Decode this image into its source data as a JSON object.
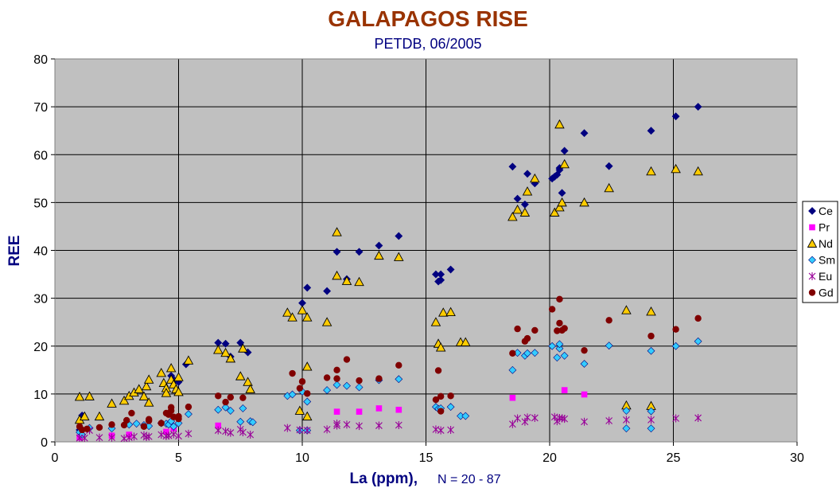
{
  "chart_data": {
    "type": "scatter",
    "title": "GALAPAGOS RISE",
    "subtitle": "PETDB, 06/2005",
    "xlabel": "La (ppm),",
    "xlabel_note": "N = 20 - 87",
    "ylabel": "REE",
    "xlim": [
      0,
      30
    ],
    "ylim": [
      0,
      80
    ],
    "x_ticks": [
      0,
      5,
      10,
      15,
      20,
      25,
      30
    ],
    "y_ticks": [
      0,
      10,
      20,
      30,
      40,
      50,
      60,
      70,
      80
    ],
    "grid": "on",
    "plot_background": "#c0c0c0",
    "legend_position": "right",
    "series": [
      {
        "name": "Ce",
        "marker": "diamond",
        "color": "#000080",
        "points": [
          [
            1.0,
            2.5
          ],
          [
            1.1,
            5.5
          ],
          [
            4.7,
            13.8
          ],
          [
            4.8,
            13.0
          ],
          [
            5.0,
            12.5
          ],
          [
            5.3,
            16.2
          ],
          [
            6.6,
            20.7
          ],
          [
            6.9,
            20.5
          ],
          [
            7.1,
            17.8
          ],
          [
            7.5,
            20.7
          ],
          [
            7.8,
            18.7
          ],
          [
            10.0,
            29.0
          ],
          [
            10.2,
            32.2
          ],
          [
            11.0,
            31.5
          ],
          [
            11.4,
            39.7
          ],
          [
            11.8,
            34.0
          ],
          [
            12.3,
            39.7
          ],
          [
            13.1,
            41.0
          ],
          [
            13.9,
            43.0
          ],
          [
            15.4,
            35.0
          ],
          [
            15.5,
            33.5
          ],
          [
            15.6,
            35.0
          ],
          [
            15.6,
            33.8
          ],
          [
            16.0,
            36.0
          ],
          [
            18.5,
            57.5
          ],
          [
            18.7,
            50.8
          ],
          [
            19.0,
            49.6
          ],
          [
            19.1,
            56.0
          ],
          [
            19.4,
            54.0
          ],
          [
            20.1,
            55.0
          ],
          [
            20.2,
            55.4
          ],
          [
            20.3,
            55.8
          ],
          [
            20.4,
            56.8
          ],
          [
            20.4,
            57.2
          ],
          [
            20.5,
            52.0
          ],
          [
            20.6,
            60.8
          ],
          [
            21.4,
            64.5
          ],
          [
            22.4,
            57.6
          ],
          [
            24.1,
            65.0
          ],
          [
            25.1,
            68.0
          ],
          [
            26.0,
            70.0
          ]
        ]
      },
      {
        "name": "Pr",
        "marker": "square",
        "color": "#ff00ff",
        "points": [
          [
            1.0,
            0.9
          ],
          [
            2.3,
            1.3
          ],
          [
            3.0,
            1.5
          ],
          [
            4.5,
            2.1
          ],
          [
            4.8,
            2.8
          ],
          [
            6.6,
            3.4
          ],
          [
            11.4,
            6.3
          ],
          [
            12.3,
            6.3
          ],
          [
            13.1,
            7.0
          ],
          [
            13.9,
            6.7
          ],
          [
            18.5,
            9.2
          ],
          [
            20.6,
            10.8
          ],
          [
            21.4,
            9.9
          ]
        ]
      },
      {
        "name": "Nd",
        "marker": "triangle",
        "color": "#ffcc00",
        "points": [
          [
            1.0,
            9.4
          ],
          [
            1.0,
            4.6
          ],
          [
            1.2,
            5.3
          ],
          [
            1.4,
            9.5
          ],
          [
            1.8,
            5.3
          ],
          [
            2.3,
            8.0
          ],
          [
            2.8,
            8.6
          ],
          [
            3.0,
            9.6
          ],
          [
            3.2,
            10.3
          ],
          [
            3.4,
            11.0
          ],
          [
            3.6,
            9.5
          ],
          [
            3.7,
            11.6
          ],
          [
            3.8,
            13.0
          ],
          [
            3.8,
            8.2
          ],
          [
            4.3,
            14.4
          ],
          [
            4.4,
            12.3
          ],
          [
            4.5,
            11.2
          ],
          [
            4.5,
            10.2
          ],
          [
            4.7,
            15.4
          ],
          [
            4.7,
            13.0
          ],
          [
            4.8,
            12.0
          ],
          [
            4.9,
            11.0
          ],
          [
            5.0,
            10.4
          ],
          [
            5.0,
            13.5
          ],
          [
            5.4,
            17.0
          ],
          [
            6.6,
            19.2
          ],
          [
            6.9,
            18.6
          ],
          [
            7.1,
            17.4
          ],
          [
            7.5,
            13.7
          ],
          [
            7.6,
            19.5
          ],
          [
            7.8,
            12.5
          ],
          [
            7.9,
            11.0
          ],
          [
            9.4,
            27.0
          ],
          [
            9.6,
            26.0
          ],
          [
            9.9,
            6.5
          ],
          [
            10.0,
            27.5
          ],
          [
            10.2,
            26.0
          ],
          [
            10.2,
            15.7
          ],
          [
            10.2,
            5.3
          ],
          [
            11.0,
            25.0
          ],
          [
            11.4,
            43.8
          ],
          [
            11.4,
            34.7
          ],
          [
            11.8,
            33.6
          ],
          [
            12.3,
            33.4
          ],
          [
            13.1,
            38.9
          ],
          [
            13.9,
            38.6
          ],
          [
            15.4,
            25.0
          ],
          [
            15.5,
            20.5
          ],
          [
            15.6,
            19.7
          ],
          [
            15.7,
            27.0
          ],
          [
            16.0,
            27.1
          ],
          [
            16.4,
            20.8
          ],
          [
            16.6,
            20.8
          ],
          [
            18.5,
            47.0
          ],
          [
            18.7,
            48.5
          ],
          [
            19.0,
            47.9
          ],
          [
            19.1,
            52.3
          ],
          [
            19.4,
            55.0
          ],
          [
            20.2,
            47.9
          ],
          [
            20.4,
            49.0
          ],
          [
            20.4,
            66.3
          ],
          [
            20.5,
            50.0
          ],
          [
            20.6,
            58.0
          ],
          [
            21.4,
            50.0
          ],
          [
            22.4,
            53.0
          ],
          [
            23.1,
            27.5
          ],
          [
            23.1,
            7.6
          ],
          [
            24.1,
            56.5
          ],
          [
            24.1,
            27.2
          ],
          [
            24.1,
            7.5
          ],
          [
            25.1,
            57.0
          ],
          [
            26.0,
            56.5
          ]
        ]
      },
      {
        "name": "Sm",
        "marker": "diamond",
        "color": "#33ccff",
        "points": [
          [
            1.0,
            2.0
          ],
          [
            1.1,
            1.5
          ],
          [
            1.4,
            2.9
          ],
          [
            2.3,
            2.8
          ],
          [
            3.0,
            3.6
          ],
          [
            3.3,
            3.8
          ],
          [
            3.6,
            3.5
          ],
          [
            3.8,
            3.3
          ],
          [
            4.3,
            3.9
          ],
          [
            4.5,
            3.8
          ],
          [
            4.6,
            3.6
          ],
          [
            4.7,
            4.3
          ],
          [
            4.8,
            3.2
          ],
          [
            5.0,
            3.9
          ],
          [
            5.4,
            5.8
          ],
          [
            6.6,
            6.7
          ],
          [
            6.9,
            7.2
          ],
          [
            7.1,
            6.5
          ],
          [
            7.5,
            4.2
          ],
          [
            7.6,
            7.0
          ],
          [
            7.9,
            4.3
          ],
          [
            8.0,
            4.1
          ],
          [
            9.4,
            9.6
          ],
          [
            9.6,
            9.9
          ],
          [
            9.9,
            2.4
          ],
          [
            10.0,
            10.5
          ],
          [
            10.2,
            8.4
          ],
          [
            10.2,
            2.4
          ],
          [
            11.0,
            10.8
          ],
          [
            11.4,
            11.9
          ],
          [
            11.8,
            11.7
          ],
          [
            12.3,
            11.4
          ],
          [
            13.1,
            12.9
          ],
          [
            13.9,
            13.1
          ],
          [
            15.4,
            7.3
          ],
          [
            15.5,
            6.9
          ],
          [
            15.6,
            7.0
          ],
          [
            16.0,
            7.3
          ],
          [
            16.4,
            5.4
          ],
          [
            16.6,
            5.4
          ],
          [
            18.5,
            15.0
          ],
          [
            18.7,
            18.6
          ],
          [
            19.0,
            18.0
          ],
          [
            19.1,
            18.5
          ],
          [
            19.4,
            18.6
          ],
          [
            20.1,
            20.0
          ],
          [
            20.3,
            17.6
          ],
          [
            20.4,
            19.5
          ],
          [
            20.4,
            20.4
          ],
          [
            20.6,
            18.0
          ],
          [
            21.4,
            16.3
          ],
          [
            22.4,
            20.1
          ],
          [
            23.1,
            6.5
          ],
          [
            23.1,
            2.8
          ],
          [
            24.1,
            19.0
          ],
          [
            24.1,
            6.4
          ],
          [
            24.1,
            2.8
          ],
          [
            25.1,
            20.0
          ],
          [
            26.0,
            21.0
          ]
        ]
      },
      {
        "name": "Eu",
        "marker": "asterisk",
        "color": "#990099",
        "points": [
          [
            1.0,
            0.8
          ],
          [
            1.2,
            0.8
          ],
          [
            1.4,
            2.4
          ],
          [
            1.8,
            0.9
          ],
          [
            2.3,
            0.9
          ],
          [
            2.8,
            0.7
          ],
          [
            3.0,
            0.9
          ],
          [
            3.2,
            1.1
          ],
          [
            3.6,
            1.4
          ],
          [
            3.7,
            1.0
          ],
          [
            3.8,
            1.1
          ],
          [
            4.3,
            1.5
          ],
          [
            4.5,
            1.2
          ],
          [
            4.6,
            1.3
          ],
          [
            4.8,
            1.6
          ],
          [
            5.0,
            1.2
          ],
          [
            5.4,
            1.7
          ],
          [
            6.6,
            2.4
          ],
          [
            6.9,
            2.2
          ],
          [
            7.1,
            1.9
          ],
          [
            7.5,
            2.6
          ],
          [
            7.6,
            2.0
          ],
          [
            7.9,
            1.5
          ],
          [
            9.4,
            2.9
          ],
          [
            9.9,
            2.5
          ],
          [
            10.2,
            2.4
          ],
          [
            11.0,
            2.6
          ],
          [
            11.4,
            3.4
          ],
          [
            11.4,
            3.8
          ],
          [
            11.8,
            3.6
          ],
          [
            12.3,
            3.3
          ],
          [
            13.1,
            3.4
          ],
          [
            13.9,
            3.5
          ],
          [
            15.4,
            2.6
          ],
          [
            15.6,
            2.4
          ],
          [
            16.0,
            2.5
          ],
          [
            18.5,
            3.7
          ],
          [
            18.7,
            4.9
          ],
          [
            19.0,
            4.2
          ],
          [
            19.1,
            5.1
          ],
          [
            19.4,
            5.0
          ],
          [
            20.2,
            5.2
          ],
          [
            20.3,
            4.3
          ],
          [
            20.4,
            5.0
          ],
          [
            20.5,
            4.9
          ],
          [
            20.6,
            4.8
          ],
          [
            21.4,
            4.2
          ],
          [
            22.4,
            4.4
          ],
          [
            23.1,
            4.6
          ],
          [
            24.1,
            4.6
          ],
          [
            25.1,
            4.9
          ],
          [
            26.0,
            5.0
          ]
        ]
      },
      {
        "name": "Gd",
        "marker": "circle",
        "color": "#800000",
        "points": [
          [
            1.0,
            3.2
          ],
          [
            1.1,
            2.5
          ],
          [
            1.3,
            2.7
          ],
          [
            1.8,
            3.0
          ],
          [
            2.3,
            3.6
          ],
          [
            2.8,
            3.5
          ],
          [
            2.9,
            4.5
          ],
          [
            3.1,
            6.0
          ],
          [
            3.6,
            3.2
          ],
          [
            3.8,
            4.4
          ],
          [
            3.8,
            4.7
          ],
          [
            4.3,
            3.9
          ],
          [
            4.5,
            6.0
          ],
          [
            4.6,
            5.7
          ],
          [
            4.7,
            7.2
          ],
          [
            4.7,
            6.5
          ],
          [
            4.8,
            5.2
          ],
          [
            5.0,
            4.8
          ],
          [
            5.0,
            5.3
          ],
          [
            5.4,
            7.3
          ],
          [
            6.6,
            9.6
          ],
          [
            6.9,
            8.3
          ],
          [
            7.1,
            9.3
          ],
          [
            7.6,
            9.2
          ],
          [
            9.6,
            14.3
          ],
          [
            9.9,
            11.2
          ],
          [
            10.0,
            12.6
          ],
          [
            10.2,
            10.1
          ],
          [
            11.0,
            13.4
          ],
          [
            11.4,
            15.0
          ],
          [
            11.4,
            13.2
          ],
          [
            11.8,
            17.2
          ],
          [
            12.3,
            12.8
          ],
          [
            13.1,
            13.2
          ],
          [
            13.9,
            16.0
          ],
          [
            15.4,
            8.8
          ],
          [
            15.5,
            14.9
          ],
          [
            15.6,
            9.5
          ],
          [
            15.6,
            6.4
          ],
          [
            16.0,
            9.6
          ],
          [
            18.5,
            18.5
          ],
          [
            18.7,
            23.6
          ],
          [
            19.0,
            21.0
          ],
          [
            19.1,
            21.6
          ],
          [
            19.4,
            23.3
          ],
          [
            20.1,
            27.7
          ],
          [
            20.3,
            23.2
          ],
          [
            20.4,
            29.8
          ],
          [
            20.4,
            24.8
          ],
          [
            20.5,
            23.3
          ],
          [
            20.6,
            23.7
          ],
          [
            21.4,
            19.1
          ],
          [
            22.4,
            25.4
          ],
          [
            24.1,
            22.1
          ],
          [
            25.1,
            23.5
          ],
          [
            26.0,
            25.8
          ]
        ]
      }
    ]
  }
}
